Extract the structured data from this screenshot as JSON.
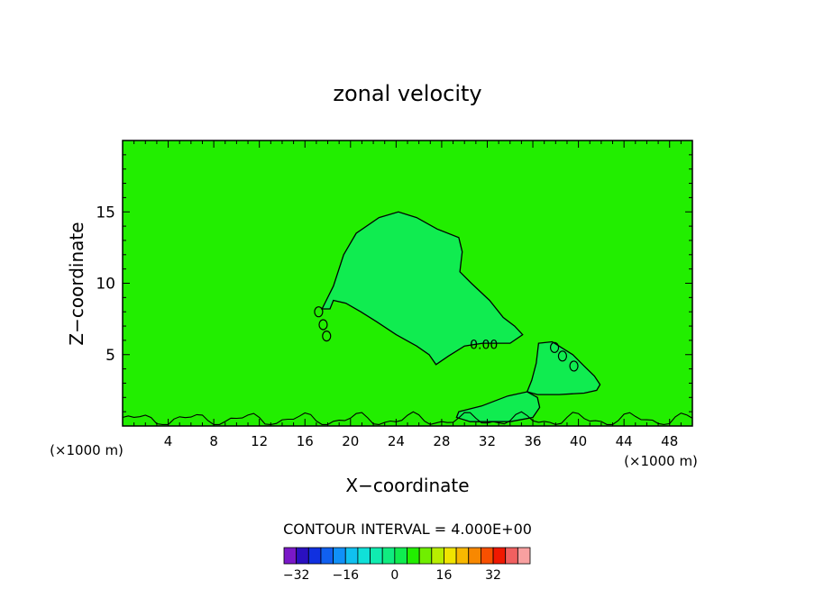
{
  "chart_data": {
    "type": "heatmap",
    "title": "zonal velocity",
    "xlabel": "X−coordinate",
    "ylabel": "Z−coordinate",
    "x_unit_left": "(×1000 m)",
    "x_unit_right": "(×1000 m)",
    "xlim": [
      0,
      50
    ],
    "ylim": [
      0,
      20
    ],
    "x_ticks": [
      4,
      8,
      12,
      16,
      20,
      24,
      28,
      32,
      36,
      40,
      44,
      48
    ],
    "y_ticks": [
      5,
      10,
      15
    ],
    "background_color": "#22ee00",
    "contour_label": "0.00",
    "contour_interval_text": "CONTOUR INTERVAL = 4.000E+00",
    "colorbar": {
      "labels": [
        "−32",
        "−16",
        "0",
        "16",
        "32"
      ],
      "label_values": [
        -32,
        -16,
        0,
        16,
        32
      ],
      "min": -36,
      "step": 4,
      "colors": [
        "#7a18c8",
        "#2a10c0",
        "#1030e0",
        "#1060f0",
        "#1090f8",
        "#10c0f0",
        "#10e0d8",
        "#10ecb0",
        "#10ec80",
        "#10ec50",
        "#22ee00",
        "#70ee00",
        "#b8ee00",
        "#f0e400",
        "#f8b800",
        "#f88800",
        "#f85000",
        "#f01800",
        "#f06060",
        "#f8a0a0"
      ]
    },
    "regions": [
      {
        "name": "Upper negative zone",
        "value": -1,
        "color": "#10ec50",
        "outline": [
          [
            17.5,
            8.2
          ],
          [
            18.5,
            9.8
          ],
          [
            19.4,
            12.0
          ],
          [
            20.5,
            13.5
          ],
          [
            22.5,
            14.6
          ],
          [
            24.2,
            15.0
          ],
          [
            25.8,
            14.6
          ],
          [
            27.6,
            13.8
          ],
          [
            29.5,
            13.2
          ],
          [
            29.8,
            12.2
          ],
          [
            29.6,
            10.8
          ],
          [
            30.6,
            10.0
          ],
          [
            32.2,
            8.8
          ],
          [
            33.4,
            7.6
          ],
          [
            34.4,
            7.0
          ],
          [
            35.1,
            6.4
          ],
          [
            34.0,
            5.8
          ],
          [
            33.0,
            5.8
          ],
          [
            31.6,
            5.8
          ],
          [
            30.0,
            5.6
          ],
          [
            28.6,
            4.9
          ],
          [
            27.5,
            4.3
          ],
          [
            26.9,
            5.0
          ],
          [
            25.8,
            5.6
          ],
          [
            24.0,
            6.4
          ],
          [
            22.3,
            7.3
          ],
          [
            20.9,
            8.0
          ],
          [
            19.6,
            8.6
          ],
          [
            18.5,
            8.8
          ],
          [
            18.2,
            8.2
          ]
        ]
      },
      {
        "name": "Lower right negative zone",
        "value": -1,
        "color": "#10ec50",
        "outline": [
          [
            36.5,
            5.8
          ],
          [
            37.7,
            5.9
          ],
          [
            39.5,
            5.0
          ],
          [
            40.5,
            4.2
          ],
          [
            41.4,
            3.5
          ],
          [
            41.9,
            2.9
          ],
          [
            41.6,
            2.5
          ],
          [
            40.5,
            2.3
          ],
          [
            38.3,
            2.2
          ],
          [
            36.4,
            2.2
          ],
          [
            35.5,
            2.4
          ],
          [
            35.9,
            3.2
          ],
          [
            36.3,
            4.4
          ]
        ]
      },
      {
        "name": "Near-surface negative zone",
        "value": -1,
        "color": "#10ec50",
        "outline": [
          [
            29.5,
            1.0
          ],
          [
            31.5,
            1.4
          ],
          [
            33.8,
            2.1
          ],
          [
            35.5,
            2.4
          ],
          [
            36.4,
            2.0
          ],
          [
            36.6,
            1.3
          ],
          [
            36.0,
            0.6
          ],
          [
            34.0,
            0.3
          ],
          [
            30.5,
            0.3
          ],
          [
            29.3,
            0.6
          ]
        ]
      }
    ],
    "small_contours": [
      {
        "x": 17.2,
        "y": 8.0
      },
      {
        "x": 17.6,
        "y": 7.1
      },
      {
        "x": 17.9,
        "y": 6.3
      },
      {
        "x": 37.9,
        "y": 5.5
      },
      {
        "x": 38.6,
        "y": 4.9
      },
      {
        "x": 39.6,
        "y": 4.2
      }
    ]
  }
}
